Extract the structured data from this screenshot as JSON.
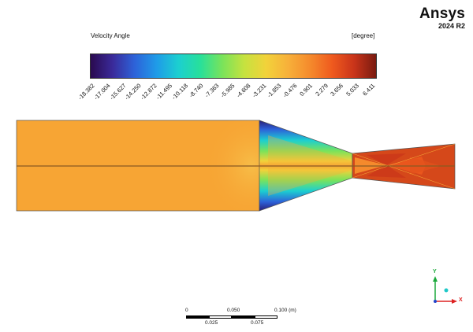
{
  "brand": {
    "name": "Ansys",
    "version": "2024 R2"
  },
  "legend": {
    "title": "Velocity Angle",
    "unit": "[degree]",
    "ticks": [
      "-18.382",
      "-17.004",
      "-15.627",
      "-14.250",
      "-12.872",
      "-11.495",
      "-10.118",
      "-8.740",
      "-7.363",
      "-5.985",
      "-4.608",
      "-3.231",
      "-1.853",
      "-0.476",
      "0.901",
      "2.279",
      "3.656",
      "5.033",
      "6.411"
    ],
    "colors": [
      "#2a0a4f",
      "#3a2a9a",
      "#2d62d9",
      "#1f9be8",
      "#1ccfd0",
      "#28e09a",
      "#7ae35a",
      "#c6e23f",
      "#f2d23a",
      "#f7b03a",
      "#f58a2c",
      "#ef5a1e",
      "#c9341a",
      "#7a1b10"
    ]
  },
  "scale_bar": {
    "labels_top": [
      "0",
      "0.050",
      "0.100  (m)"
    ],
    "labels_bottom": [
      "0.025",
      "0.075"
    ]
  },
  "triad": {
    "y": "Y",
    "x": "X"
  },
  "colors": {
    "nozzle_base": "#f7a534",
    "throat": "#d5481a",
    "cool": "#2a1e78"
  }
}
